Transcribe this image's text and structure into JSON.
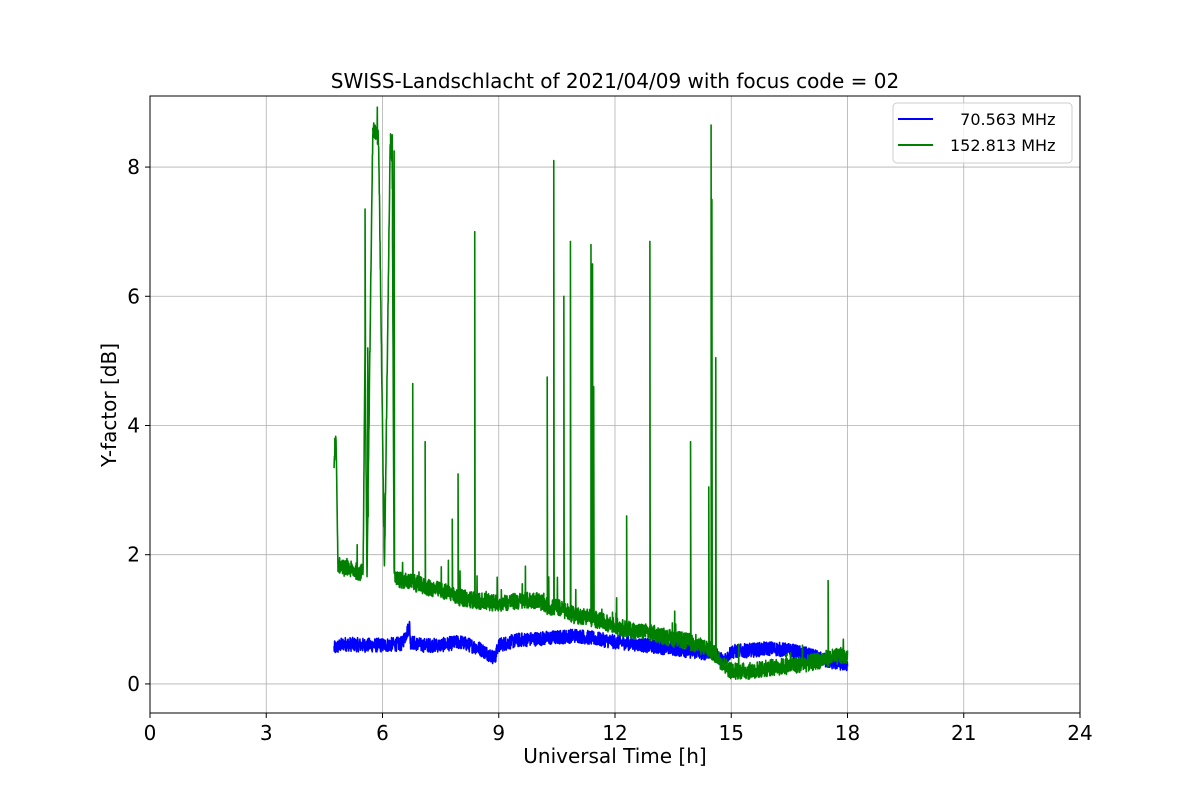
{
  "chart_data": {
    "type": "line",
    "title": "SWISS-Landschlacht of 2021/04/09 with focus code = 02",
    "xlabel": "Universal Time [h]",
    "ylabel": "Y-factor [dB]",
    "xlim": [
      0,
      24
    ],
    "ylim": [
      -0.45,
      9.1
    ],
    "xticks": [
      0,
      3,
      6,
      9,
      12,
      15,
      18,
      21,
      24
    ],
    "xtick_labels": [
      "0",
      "3",
      "6",
      "9",
      "12",
      "15",
      "18",
      "21",
      "24"
    ],
    "yticks": [
      0,
      2,
      4,
      6,
      8
    ],
    "ytick_labels": [
      "0",
      "2",
      "4",
      "6",
      "8"
    ],
    "grid": true,
    "legend_position": "top-right",
    "legend_items": [
      "  70.563 MHz",
      "152.813 MHz"
    ],
    "series": [
      {
        "name": "  70.563 MHz",
        "color": "#0000ff",
        "x": [
          4.75,
          5.0,
          5.5,
          6.0,
          6.5,
          6.7,
          6.72,
          7.0,
          7.5,
          8.0,
          8.5,
          8.9,
          9.0,
          9.5,
          10.0,
          10.5,
          11.0,
          11.5,
          12.0,
          12.5,
          13.0,
          13.5,
          14.0,
          14.3,
          14.5,
          14.8,
          15.0,
          15.5,
          16.0,
          16.5,
          17.0,
          17.5,
          18.0
        ],
        "y": [
          0.55,
          0.62,
          0.6,
          0.6,
          0.62,
          0.9,
          0.65,
          0.6,
          0.6,
          0.65,
          0.55,
          0.4,
          0.6,
          0.68,
          0.7,
          0.72,
          0.75,
          0.7,
          0.65,
          0.62,
          0.58,
          0.55,
          0.5,
          0.48,
          0.5,
          0.35,
          0.5,
          0.52,
          0.55,
          0.52,
          0.45,
          0.35,
          0.3
        ]
      },
      {
        "name": "152.813 MHz",
        "color": "#008000",
        "x": [
          4.75,
          4.8,
          4.85,
          5.0,
          5.5,
          5.55,
          5.6,
          5.75,
          5.9,
          6.05,
          6.2,
          6.25,
          6.3,
          6.5,
          6.75,
          7.1,
          7.5,
          7.75,
          7.9,
          8.35,
          8.5,
          9.0,
          9.5,
          10.0,
          10.25,
          10.4,
          10.5,
          10.65,
          10.8,
          11.0,
          11.35,
          11.4,
          11.5,
          12.0,
          12.3,
          12.5,
          12.85,
          13.0,
          13.5,
          13.95,
          14.0,
          14.4,
          14.5,
          14.6,
          14.8,
          15.0,
          15.5,
          16.0,
          16.5,
          17.0,
          17.5,
          18.0
        ],
        "y": [
          3.4,
          3.8,
          1.85,
          1.8,
          1.72,
          5.2,
          1.7,
          8.6,
          8.45,
          1.7,
          8.45,
          8.1,
          1.65,
          1.6,
          1.58,
          1.5,
          1.45,
          1.4,
          1.35,
          1.3,
          1.28,
          1.25,
          1.28,
          1.3,
          1.2,
          1.18,
          1.2,
          1.15,
          1.1,
          1.05,
          1.05,
          1.0,
          1.0,
          0.9,
          0.85,
          0.82,
          0.8,
          0.78,
          0.7,
          0.65,
          0.62,
          0.55,
          0.5,
          0.45,
          0.3,
          0.2,
          0.2,
          0.25,
          0.28,
          0.32,
          0.4,
          0.45
        ]
      }
    ],
    "peaks_152": [
      {
        "x": 4.77,
        "y": 3.8
      },
      {
        "x": 5.55,
        "y": 7.35
      },
      {
        "x": 5.62,
        "y": 5.2
      },
      {
        "x": 5.75,
        "y": 8.6
      },
      {
        "x": 5.88,
        "y": 8.45
      },
      {
        "x": 6.03,
        "y": 2.95
      },
      {
        "x": 6.2,
        "y": 8.35
      },
      {
        "x": 6.25,
        "y": 8.5
      },
      {
        "x": 6.3,
        "y": 8.25
      },
      {
        "x": 6.78,
        "y": 4.65
      },
      {
        "x": 7.1,
        "y": 3.75
      },
      {
        "x": 7.8,
        "y": 2.55
      },
      {
        "x": 7.95,
        "y": 3.25
      },
      {
        "x": 8.38,
        "y": 7.0
      },
      {
        "x": 10.25,
        "y": 4.75
      },
      {
        "x": 10.42,
        "y": 8.1
      },
      {
        "x": 10.68,
        "y": 6.0
      },
      {
        "x": 10.85,
        "y": 6.85
      },
      {
        "x": 11.38,
        "y": 6.8
      },
      {
        "x": 11.42,
        "y": 6.5
      },
      {
        "x": 11.45,
        "y": 4.6
      },
      {
        "x": 12.3,
        "y": 2.6
      },
      {
        "x": 12.9,
        "y": 6.85
      },
      {
        "x": 13.95,
        "y": 3.75
      },
      {
        "x": 14.42,
        "y": 3.05
      },
      {
        "x": 14.48,
        "y": 8.65
      },
      {
        "x": 14.5,
        "y": 7.5
      },
      {
        "x": 14.6,
        "y": 5.05
      },
      {
        "x": 17.5,
        "y": 1.6
      }
    ]
  }
}
